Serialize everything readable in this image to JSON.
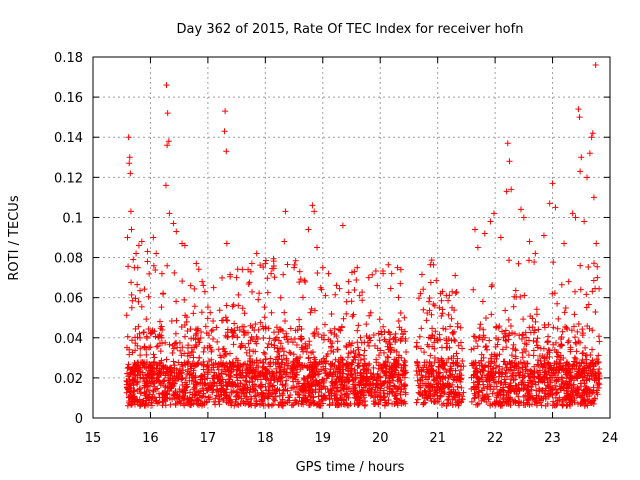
{
  "chart_data": {
    "type": "scatter",
    "title": "Day 362 of 2015, Rate Of TEC Index for receiver hofn",
    "xlabel": "GPS time / hours",
    "ylabel": "ROTI / TECUs",
    "xlim": [
      15,
      24
    ],
    "ylim": [
      0,
      0.18
    ],
    "xticks": [
      15,
      16,
      17,
      18,
      19,
      20,
      21,
      22,
      23,
      24
    ],
    "xtick_labels": [
      "15",
      "16",
      "17",
      "18",
      "19",
      "20",
      "21",
      "22",
      "23",
      "24"
    ],
    "yticks": [
      0,
      0.02,
      0.04,
      0.06,
      0.08,
      0.1,
      0.12,
      0.14,
      0.16,
      0.18
    ],
    "ytick_labels": [
      "0",
      "0.02",
      "0.04",
      "0.06",
      "0.08",
      "0.1",
      "0.12",
      "0.14",
      "0.16",
      "0.18"
    ],
    "grid": true,
    "marker": "+",
    "color": "#ff0000",
    "data_gap_hours": [
      [
        20.45,
        20.62
      ],
      [
        21.45,
        21.58
      ]
    ],
    "series": [
      {
        "name": "ROTI",
        "points": [
          [
            15.62,
            0.14
          ],
          [
            15.64,
            0.13
          ],
          [
            15.63,
            0.127
          ],
          [
            15.65,
            0.122
          ],
          [
            15.66,
            0.103
          ],
          [
            15.6,
            0.09
          ],
          [
            15.67,
            0.094
          ],
          [
            15.7,
            0.079
          ],
          [
            15.72,
            0.075
          ],
          [
            15.75,
            0.082
          ],
          [
            15.8,
            0.086
          ],
          [
            15.85,
            0.088
          ],
          [
            15.95,
            0.083
          ],
          [
            16.05,
            0.09
          ],
          [
            16.1,
            0.082
          ],
          [
            16.2,
            0.072
          ],
          [
            16.28,
            0.166
          ],
          [
            16.3,
            0.152
          ],
          [
            16.29,
            0.136
          ],
          [
            16.32,
            0.138
          ],
          [
            16.27,
            0.116
          ],
          [
            16.33,
            0.102
          ],
          [
            16.4,
            0.097
          ],
          [
            16.45,
            0.093
          ],
          [
            16.55,
            0.087
          ],
          [
            16.6,
            0.086
          ],
          [
            16.7,
            0.066
          ],
          [
            16.9,
            0.068
          ],
          [
            17.1,
            0.065
          ],
          [
            17.3,
            0.153
          ],
          [
            17.29,
            0.143
          ],
          [
            17.32,
            0.133
          ],
          [
            17.33,
            0.087
          ],
          [
            17.5,
            0.07
          ],
          [
            17.6,
            0.074
          ],
          [
            17.7,
            0.074
          ],
          [
            17.85,
            0.082
          ],
          [
            18.0,
            0.077
          ],
          [
            18.1,
            0.072
          ],
          [
            18.35,
            0.103
          ],
          [
            18.33,
            0.088
          ],
          [
            18.5,
            0.075
          ],
          [
            18.6,
            0.073
          ],
          [
            18.75,
            0.094
          ],
          [
            18.82,
            0.106
          ],
          [
            18.85,
            0.103
          ],
          [
            18.9,
            0.085
          ],
          [
            19.0,
            0.075
          ],
          [
            19.1,
            0.072
          ],
          [
            19.35,
            0.096
          ],
          [
            19.45,
            0.068
          ],
          [
            19.55,
            0.073
          ],
          [
            19.6,
            0.075
          ],
          [
            19.8,
            0.07
          ],
          [
            19.95,
            0.066
          ],
          [
            20.05,
            0.072
          ],
          [
            20.2,
            0.072
          ],
          [
            20.3,
            0.075
          ],
          [
            20.35,
            0.067
          ],
          [
            20.42,
            0.05
          ],
          [
            20.7,
            0.062
          ],
          [
            20.75,
            0.054
          ],
          [
            20.85,
            0.058
          ],
          [
            20.95,
            0.056
          ],
          [
            21.05,
            0.062
          ],
          [
            21.15,
            0.061
          ],
          [
            21.25,
            0.055
          ],
          [
            21.35,
            0.047
          ],
          [
            21.4,
            0.045
          ],
          [
            21.65,
            0.094
          ],
          [
            21.7,
            0.085
          ],
          [
            21.82,
            0.092
          ],
          [
            21.92,
            0.098
          ],
          [
            21.98,
            0.102
          ],
          [
            22.1,
            0.09
          ],
          [
            22.2,
            0.113
          ],
          [
            22.22,
            0.137
          ],
          [
            22.25,
            0.128
          ],
          [
            22.28,
            0.114
          ],
          [
            22.45,
            0.104
          ],
          [
            22.5,
            0.1
          ],
          [
            22.6,
            0.088
          ],
          [
            22.7,
            0.082
          ],
          [
            22.85,
            0.091
          ],
          [
            22.95,
            0.107
          ],
          [
            23.0,
            0.117
          ],
          [
            23.05,
            0.105
          ],
          [
            23.2,
            0.087
          ],
          [
            23.35,
            0.102
          ],
          [
            23.4,
            0.1
          ],
          [
            23.45,
            0.154
          ],
          [
            23.47,
            0.15
          ],
          [
            23.5,
            0.13
          ],
          [
            23.48,
            0.123
          ],
          [
            23.55,
            0.098
          ],
          [
            23.6,
            0.12
          ],
          [
            23.65,
            0.132
          ],
          [
            23.68,
            0.14
          ],
          [
            23.7,
            0.142
          ],
          [
            23.72,
            0.11
          ],
          [
            23.75,
            0.176
          ],
          [
            23.76,
            0.087
          ],
          [
            23.78,
            0.07
          ]
        ]
      }
    ]
  }
}
